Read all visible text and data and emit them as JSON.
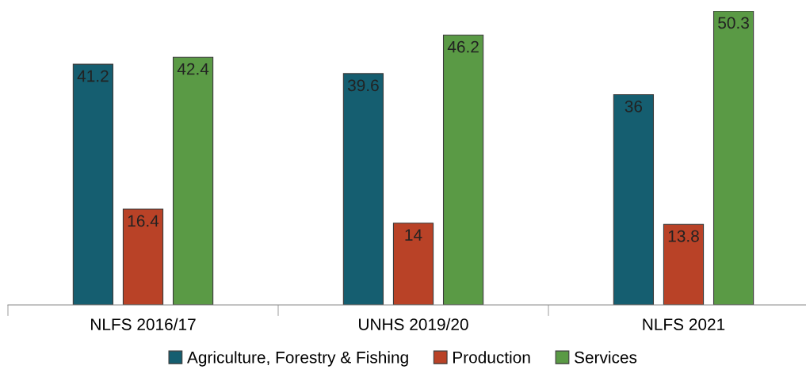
{
  "chart_data": {
    "type": "bar",
    "categories": [
      "NLFS 2016/17",
      "UNHS 2019/20",
      "NLFS 2021"
    ],
    "series": [
      {
        "name": "Agriculture, Forestry & Fishing",
        "color": "#155e70",
        "values": [
          41.2,
          39.6,
          36
        ]
      },
      {
        "name": "Production",
        "color": "#b94227",
        "values": [
          16.4,
          14,
          13.8
        ]
      },
      {
        "name": "Services",
        "color": "#5a9a45",
        "values": [
          42.4,
          46.2,
          50.3
        ]
      }
    ],
    "data_labels": true,
    "legend": "bottom"
  }
}
